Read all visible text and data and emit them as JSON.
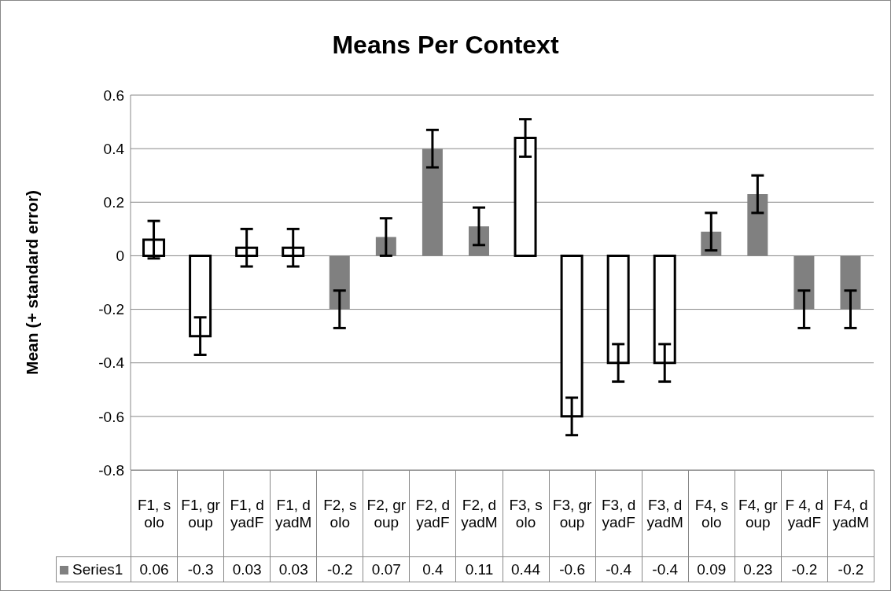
{
  "chart_data": {
    "type": "bar",
    "title": "Means Per Context",
    "ylabel": "Mean (+ standard error)",
    "categories": [
      "F1, solo",
      "F1, group",
      "F1, dyadF",
      "F1, dyadM",
      "F2, solo",
      "F2, group",
      "F2, dyadF",
      "F2, dyadM",
      "F3, solo",
      "F3, group",
      "F3, dyadF",
      "F3, dyadM",
      "F4, solo",
      "F4, group",
      "F 4, dyadF",
      "F4, dyadM"
    ],
    "series": [
      {
        "name": "Series1",
        "color": "#808080",
        "values": [
          0.06,
          -0.3,
          0.03,
          0.03,
          -0.2,
          0.07,
          0.4,
          0.11,
          0.44,
          -0.6,
          -0.4,
          -0.4,
          0.09,
          0.23,
          -0.2,
          -0.2
        ],
        "colors": [
          "#ffffff",
          "#ffffff",
          "#ffffff",
          "#ffffff",
          "#808080",
          "#808080",
          "#808080",
          "#808080",
          "#ffffff",
          "#ffffff",
          "#ffffff",
          "#ffffff",
          "#808080",
          "#808080",
          "#808080",
          "#808080"
        ],
        "errors": [
          0.07,
          0.07,
          0.07,
          0.07,
          0.07,
          0.07,
          0.07,
          0.07,
          0.07,
          0.07,
          0.07,
          0.07,
          0.07,
          0.07,
          0.07,
          0.07
        ]
      }
    ],
    "ylim": [
      -0.8,
      0.6
    ],
    "yticks": [
      -0.8,
      -0.6,
      -0.4,
      -0.2,
      0,
      0.2,
      0.4,
      0.6
    ],
    "grid": "y",
    "legend": "bottom",
    "data_labels": true
  }
}
